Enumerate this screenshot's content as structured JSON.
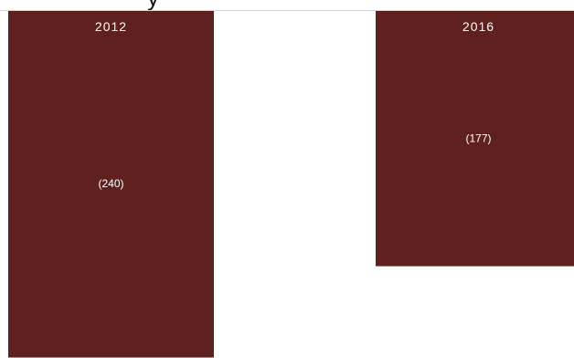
{
  "chart_data": {
    "type": "bar",
    "categories": [
      "2012",
      "2016"
    ],
    "values": [
      -240,
      -177
    ],
    "value_labels": [
      "(240)",
      "(177)"
    ],
    "title_fragment": "y",
    "bar_color": "#5f211f",
    "axis_color": "#d9d9d9",
    "label_color": "#ffffff",
    "grid": false,
    "legend": "none"
  }
}
